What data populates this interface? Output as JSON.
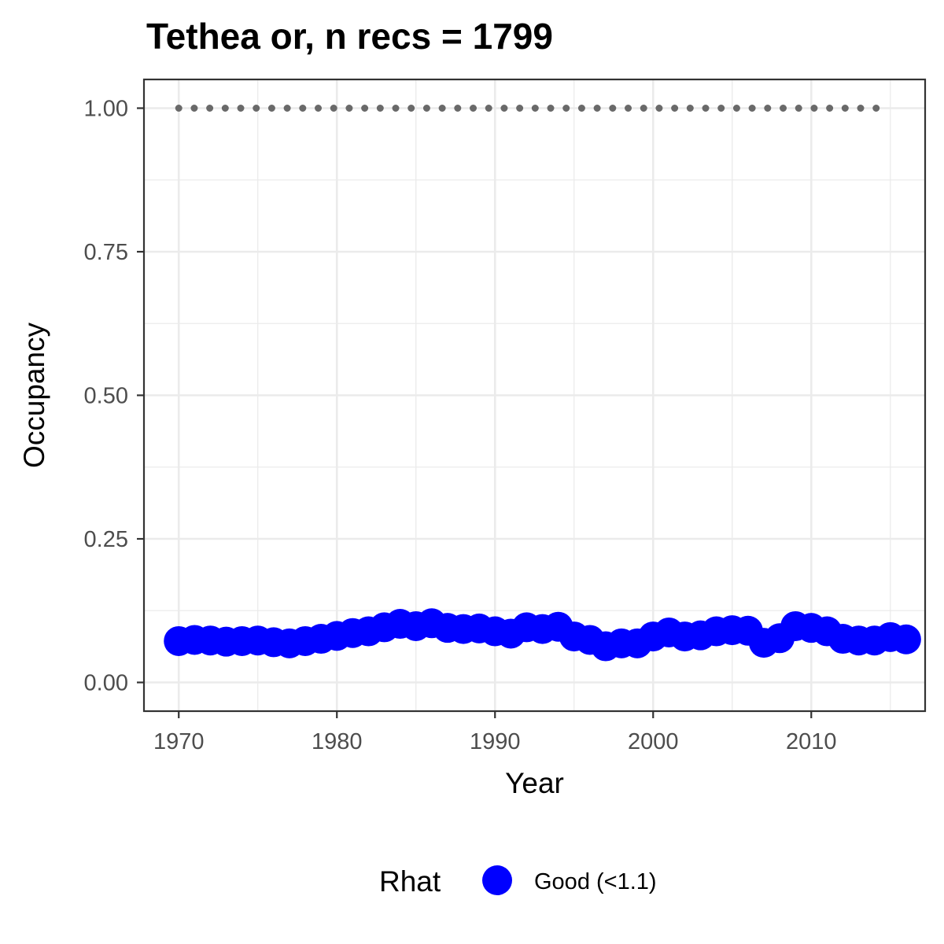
{
  "chart_data": {
    "type": "scatter",
    "title": "Tethea or, n recs = 1799",
    "xlabel": "Year",
    "ylabel": "Occupancy",
    "xlim": [
      1967.8,
      2017.2
    ],
    "ylim": [
      -0.05,
      1.05
    ],
    "xticks": [
      "1970",
      "1980",
      "1990",
      "2000",
      "2010"
    ],
    "yticks": [
      "0.00",
      "0.25",
      "0.50",
      "0.75",
      "1.00"
    ],
    "grid": true,
    "legend": {
      "title": "Rhat",
      "position": "bottom",
      "entries": [
        {
          "label": "Good (<1.1)",
          "color": "#0000ff"
        }
      ]
    },
    "series": [
      {
        "name": "Good (<1.1)",
        "color": "#0000ff",
        "style": "points",
        "x": [
          1970,
          1971,
          1972,
          1973,
          1974,
          1975,
          1976,
          1977,
          1978,
          1979,
          1980,
          1981,
          1982,
          1983,
          1984,
          1985,
          1986,
          1987,
          1988,
          1989,
          1990,
          1991,
          1992,
          1993,
          1994,
          1995,
          1996,
          1997,
          1998,
          1999,
          2000,
          2001,
          2002,
          2003,
          2004,
          2005,
          2006,
          2007,
          2008,
          2009,
          2010,
          2011,
          2012,
          2013,
          2014,
          2015,
          2016
        ],
        "y": [
          0.072,
          0.074,
          0.073,
          0.071,
          0.072,
          0.073,
          0.07,
          0.068,
          0.072,
          0.076,
          0.081,
          0.086,
          0.089,
          0.096,
          0.102,
          0.098,
          0.103,
          0.095,
          0.093,
          0.094,
          0.089,
          0.085,
          0.096,
          0.093,
          0.097,
          0.08,
          0.074,
          0.063,
          0.068,
          0.068,
          0.08,
          0.087,
          0.08,
          0.082,
          0.089,
          0.091,
          0.09,
          0.069,
          0.077,
          0.098,
          0.095,
          0.089,
          0.076,
          0.073,
          0.073,
          0.079,
          0.075
        ]
      },
      {
        "name": "",
        "color": "#696969",
        "style": "dotted-line",
        "x": [
          1970,
          2015
        ],
        "y": [
          1.0,
          1.0
        ]
      }
    ]
  }
}
